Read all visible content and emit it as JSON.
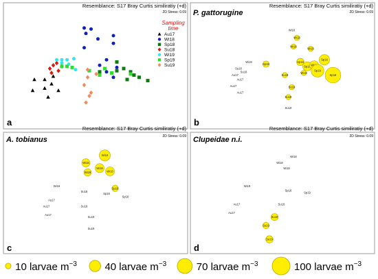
{
  "colors": {
    "bubble_fill": "#ffee00",
    "bubble_stroke": "#b8a600",
    "Au17": "#000000",
    "Wi18": "#1020c0",
    "Sp18": "#0e7a10",
    "Su18": "#dd1a10",
    "Wi19": "#33e6ee",
    "Sp19": "#32dd32",
    "Su19": "#f28a5a",
    "legend_title": "#ff0000"
  },
  "common": {
    "resemblance": "Resemblance: S17 Bray Curtis similiratiy (+d)",
    "stress": "2D Stress: 0.09"
  },
  "panels": [
    {
      "letter": "a",
      "species": ""
    },
    {
      "letter": "b",
      "species": "P. gattorugine"
    },
    {
      "letter": "c",
      "species": "A. tobianus"
    },
    {
      "letter": "d",
      "species": "Clupeidae n.i."
    }
  ],
  "legend": {
    "title_line1": "Sampling",
    "title_line2": "time",
    "entries": [
      {
        "label": "Au17",
        "shape": "triangle",
        "color_key": "Au17"
      },
      {
        "label": "Wi18",
        "shape": "circle",
        "color_key": "Wi18"
      },
      {
        "label": "Sp18",
        "shape": "square",
        "color_key": "Sp18"
      },
      {
        "label": "Su18",
        "shape": "diamond",
        "color_key": "Su18"
      },
      {
        "label": "Wi19",
        "shape": "circle",
        "color_key": "Wi19"
      },
      {
        "label": "Sp19",
        "shape": "square",
        "color_key": "Sp19"
      },
      {
        "label": "Su19",
        "shape": "diamond",
        "color_key": "Su19"
      }
    ]
  },
  "size_legend": {
    "items": [
      {
        "value": 10,
        "label": "10 larvae m",
        "sup": "−3"
      },
      {
        "value": 40,
        "label": "40 larvae m",
        "sup": "−3"
      },
      {
        "value": 70,
        "label": "70 larvae m",
        "sup": "−3"
      },
      {
        "value": 100,
        "label": "100 larvae m",
        "sup": "−3"
      }
    ]
  },
  "chart_data": [
    {
      "type": "scatter",
      "panel": "a",
      "title": "",
      "xlabel": "",
      "ylabel": "",
      "grid": false,
      "legend_position": "top-right",
      "xlim": [
        0,
        1
      ],
      "ylim": [
        0,
        1
      ],
      "series": [
        {
          "name": "Au17",
          "points": [
            [
              0.2,
              0.4
            ],
            [
              0.25,
              0.43
            ],
            [
              0.14,
              0.4
            ],
            [
              0.2,
              0.32
            ],
            [
              0.28,
              0.3
            ],
            [
              0.13,
              0.3
            ],
            [
              0.22,
              0.24
            ],
            [
              0.24,
              0.36
            ]
          ]
        },
        {
          "name": "Wi18",
          "points": [
            [
              0.43,
              0.87
            ],
            [
              0.47,
              0.86
            ],
            [
              0.44,
              0.82
            ],
            [
              0.51,
              0.77
            ],
            [
              0.6,
              0.73
            ],
            [
              0.6,
              0.8
            ],
            [
              0.43,
              0.69
            ],
            [
              0.52,
              0.53
            ],
            [
              0.56,
              0.47
            ],
            [
              0.56,
              0.58
            ],
            [
              0.6,
              0.42
            ],
            [
              0.62,
              0.51
            ]
          ]
        },
        {
          "name": "Sp18",
          "points": [
            [
              0.62,
              0.48
            ],
            [
              0.66,
              0.5
            ],
            [
              0.7,
              0.47
            ],
            [
              0.72,
              0.44
            ],
            [
              0.75,
              0.42
            ],
            [
              0.8,
              0.39
            ],
            [
              0.68,
              0.4
            ],
            [
              0.52,
              0.47
            ],
            [
              0.62,
              0.56
            ]
          ]
        },
        {
          "name": "Su18",
          "points": [
            [
              0.23,
              0.5
            ],
            [
              0.25,
              0.53
            ],
            [
              0.27,
              0.55
            ],
            [
              0.24,
              0.46
            ],
            [
              0.28,
              0.48
            ],
            [
              0.3,
              0.52
            ]
          ]
        },
        {
          "name": "Wi19",
          "points": [
            [
              0.27,
              0.58
            ],
            [
              0.3,
              0.58
            ],
            [
              0.3,
              0.55
            ],
            [
              0.33,
              0.58
            ],
            [
              0.37,
              0.59
            ],
            [
              0.34,
              0.54
            ],
            [
              0.38,
              0.49
            ]
          ]
        },
        {
          "name": "Sp19",
          "points": [
            [
              0.3,
              0.52
            ],
            [
              0.33,
              0.52
            ],
            [
              0.36,
              0.51
            ],
            [
              0.46,
              0.48
            ],
            [
              0.52,
              0.44
            ],
            [
              0.55,
              0.5
            ],
            [
              0.59,
              0.46
            ],
            [
              0.7,
              0.45
            ]
          ]
        },
        {
          "name": "Su19",
          "points": [
            [
              0.45,
              0.49
            ],
            [
              0.43,
              0.35
            ],
            [
              0.45,
              0.42
            ],
            [
              0.47,
              0.28
            ],
            [
              0.44,
              0.19
            ],
            [
              0.46,
              0.25
            ],
            [
              0.5,
              0.45
            ]
          ]
        }
      ]
    },
    {
      "type": "scatter",
      "panel": "b",
      "title": "P. gattorugine",
      "xlabel": "",
      "ylabel": "",
      "grid": false,
      "xlim": [
        0,
        1
      ],
      "ylim": [
        0,
        1
      ],
      "series": [
        {
          "name": "larval density (larvae m-3)",
          "points": [
            {
              "label": "Wi18",
              "x": 0.55,
              "y": 0.85,
              "density": 0
            },
            {
              "label": "Wi18",
              "x": 0.58,
              "y": 0.78,
              "density": 10
            },
            {
              "label": "Wi18",
              "x": 0.56,
              "y": 0.7,
              "density": 10
            },
            {
              "label": "Wi18",
              "x": 0.66,
              "y": 0.68,
              "density": 10
            },
            {
              "label": "Wi19",
              "x": 0.3,
              "y": 0.56,
              "density": 0
            },
            {
              "label": "Sp19",
              "x": 0.4,
              "y": 0.54,
              "density": 15
            },
            {
              "label": "Sp18",
              "x": 0.6,
              "y": 0.56,
              "density": 20
            },
            {
              "label": "Sp18",
              "x": 0.64,
              "y": 0.52,
              "density": 30
            },
            {
              "label": "Wi18",
              "x": 0.68,
              "y": 0.53,
              "density": 30
            },
            {
              "label": "Sp18",
              "x": 0.74,
              "y": 0.58,
              "density": 40
            },
            {
              "label": "Sp19",
              "x": 0.7,
              "y": 0.48,
              "density": 60
            },
            {
              "label": "Sp18",
              "x": 0.79,
              "y": 0.44,
              "density": 90
            },
            {
              "label": "Wi18",
              "x": 0.62,
              "y": 0.46,
              "density": 10
            },
            {
              "label": "Su19",
              "x": 0.51,
              "y": 0.44,
              "density": 10
            },
            {
              "label": "Su19",
              "x": 0.55,
              "y": 0.33,
              "density": 10
            },
            {
              "label": "Su19",
              "x": 0.53,
              "y": 0.24,
              "density": 10
            },
            {
              "label": "Su19",
              "x": 0.53,
              "y": 0.14,
              "density": 0
            },
            {
              "label": "Au17",
              "x": 0.25,
              "y": 0.4,
              "density": 0
            },
            {
              "label": "Au17",
              "x": 0.21,
              "y": 0.34,
              "density": 0
            },
            {
              "label": "Au17",
              "x": 0.25,
              "y": 0.28,
              "density": 0
            },
            {
              "label": "Au17",
              "x": 0.22,
              "y": 0.44,
              "density": 0
            },
            {
              "label": "Su18",
              "x": 0.24,
              "y": 0.5,
              "density": 0
            },
            {
              "label": "Su18",
              "x": 0.27,
              "y": 0.47,
              "density": 0
            }
          ]
        }
      ]
    },
    {
      "type": "scatter",
      "panel": "c",
      "title": "A. tobianus",
      "xlabel": "",
      "ylabel": "",
      "grid": false,
      "xlim": [
        0,
        1
      ],
      "ylim": [
        0,
        1
      ],
      "series": [
        {
          "name": "larval density (larvae m-3)",
          "points": [
            {
              "label": "Wi18",
              "x": 0.55,
              "y": 0.86,
              "density": 45
            },
            {
              "label": "Wi18",
              "x": 0.44,
              "y": 0.79,
              "density": 25
            },
            {
              "label": "Wi18",
              "x": 0.52,
              "y": 0.74,
              "density": 30
            },
            {
              "label": "Wi18",
              "x": 0.58,
              "y": 0.71,
              "density": 30
            },
            {
              "label": "Wi18",
              "x": 0.45,
              "y": 0.7,
              "density": 20
            },
            {
              "label": "Sp18",
              "x": 0.61,
              "y": 0.55,
              "density": 15
            },
            {
              "label": "Wi19",
              "x": 0.27,
              "y": 0.57,
              "density": 0
            },
            {
              "label": "Su18",
              "x": 0.43,
              "y": 0.52,
              "density": 0
            },
            {
              "label": "Sp18",
              "x": 0.56,
              "y": 0.5,
              "density": 0
            },
            {
              "label": "Sp18",
              "x": 0.67,
              "y": 0.47,
              "density": 0
            },
            {
              "label": "Au17",
              "x": 0.21,
              "y": 0.38,
              "density": 0
            },
            {
              "label": "Au17",
              "x": 0.22,
              "y": 0.3,
              "density": 0
            },
            {
              "label": "Au17",
              "x": 0.24,
              "y": 0.44,
              "density": 0
            },
            {
              "label": "Su19",
              "x": 0.43,
              "y": 0.38,
              "density": 0
            },
            {
              "label": "Su19",
              "x": 0.47,
              "y": 0.28,
              "density": 0
            },
            {
              "label": "Su19",
              "x": 0.47,
              "y": 0.17,
              "density": 0
            }
          ]
        }
      ]
    },
    {
      "type": "scatter",
      "panel": "d",
      "title": "Clupeidae n.i.",
      "xlabel": "",
      "ylabel": "",
      "grid": false,
      "xlim": [
        0,
        1
      ],
      "ylim": [
        0,
        1
      ],
      "series": [
        {
          "name": "larval density (larvae m-3)",
          "points": [
            {
              "label": "Wi18",
              "x": 0.56,
              "y": 0.85,
              "density": 0
            },
            {
              "label": "Wi18",
              "x": 0.48,
              "y": 0.79,
              "density": 0
            },
            {
              "label": "Wi18",
              "x": 0.52,
              "y": 0.74,
              "density": 0
            },
            {
              "label": "Wi19",
              "x": 0.29,
              "y": 0.57,
              "density": 0
            },
            {
              "label": "Sp18",
              "x": 0.53,
              "y": 0.53,
              "density": 0
            },
            {
              "label": "Sp19",
              "x": 0.64,
              "y": 0.51,
              "density": 0
            },
            {
              "label": "Au17",
              "x": 0.23,
              "y": 0.4,
              "density": 0
            },
            {
              "label": "Au17",
              "x": 0.2,
              "y": 0.32,
              "density": 0
            },
            {
              "label": "Su19",
              "x": 0.49,
              "y": 0.4,
              "density": 0
            },
            {
              "label": "Su19",
              "x": 0.45,
              "y": 0.28,
              "density": 18
            },
            {
              "label": "Su19",
              "x": 0.4,
              "y": 0.2,
              "density": 15
            },
            {
              "label": "Su19",
              "x": 0.42,
              "y": 0.07,
              "density": 20
            }
          ]
        }
      ]
    }
  ]
}
